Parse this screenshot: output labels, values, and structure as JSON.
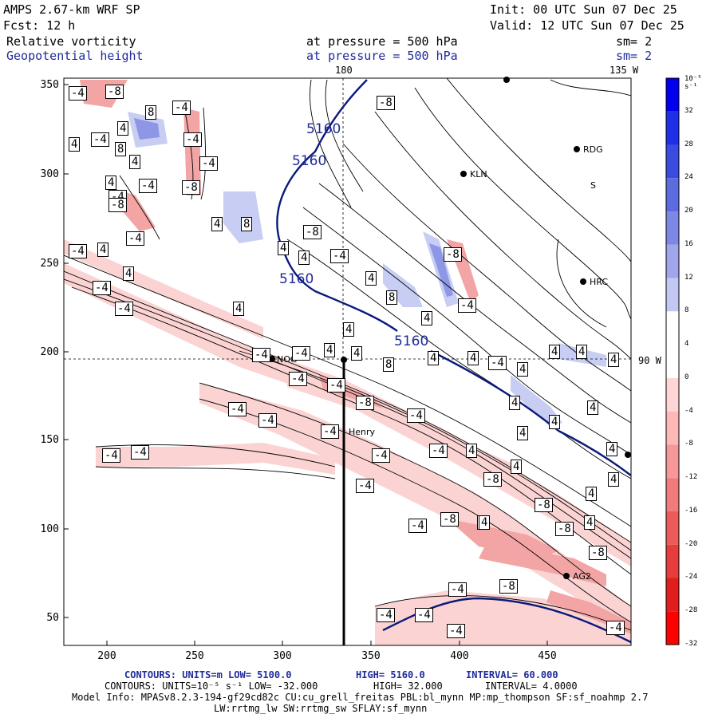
{
  "header": {
    "model": "AMPS 2.67-km WRF SP",
    "init": "Init: 00 UTC Sun 07 Dec 25",
    "fcst": "Fcst:     12 h",
    "valid": "Valid: 12 UTC Sun 07 Dec 25",
    "field1": "Relative vorticity",
    "field1_level": "at pressure =  500 hPa",
    "field1_sm": "sm= 2",
    "field2": "Geopotential height",
    "field2_level": "at pressure =  500 hPa",
    "field2_sm": "sm= 2"
  },
  "map": {
    "lon_labels": [
      "180",
      "135 W",
      "90 W"
    ],
    "y_ticks": [
      "350",
      "300",
      "250",
      "200",
      "150",
      "100",
      "50"
    ],
    "x_ticks": [
      "200",
      "250",
      "300",
      "350",
      "400",
      "450"
    ],
    "height_labels": [
      "5160",
      "5160",
      "5160",
      "5160"
    ],
    "stations": [
      "NOG",
      "KLN",
      "RDG",
      "HRC",
      "Henry",
      "AG2",
      "S"
    ],
    "vort_labels": [
      "-4",
      "-8",
      "8",
      "-4",
      "4",
      "-4",
      "4",
      "-4",
      "8",
      "-4",
      "4",
      "-4",
      "-8",
      "4",
      "-4",
      "-8",
      "4",
      "8",
      "-4",
      "4",
      "-4",
      "-8",
      "4",
      "-4",
      "-8",
      "4",
      "-4",
      "4",
      "8",
      "4",
      "-4",
      "4",
      "4",
      "-4",
      "4",
      "-8",
      "-4",
      "4",
      "8",
      "4",
      "-4",
      "4",
      "4",
      "-4",
      "4",
      "-4",
      "-4",
      "4",
      "4",
      "4",
      "-4",
      "4",
      "4",
      "4",
      "4",
      "-4",
      "4",
      "-8",
      "-4",
      "-4",
      "-4",
      "4",
      "-4",
      "4",
      "-8",
      "4",
      "-4",
      "-4",
      "-8",
      "4",
      "-4",
      "-4",
      "4",
      "-8",
      "4",
      "-8",
      "-8",
      "-8",
      "4",
      "-4",
      "-4",
      "-4",
      "-4",
      "-4"
    ]
  },
  "colorbar": {
    "unit": "10⁻⁵ s⁻¹",
    "labels": [
      "32",
      "28",
      "24",
      "20",
      "16",
      "12",
      "8",
      "4",
      "0",
      "-4",
      "-8",
      "-12",
      "-16",
      "-20",
      "-24",
      "-28",
      "-32"
    ],
    "colors": [
      "#0000ee",
      "#1f2ee8",
      "#3a4ce0",
      "#5c6be0",
      "#7d88e4",
      "#9fa6ea",
      "#c3c8f2",
      "#ffffff",
      "#ffffff",
      "#ffd6d6",
      "#ffb8b8",
      "#f79898",
      "#f27a7a",
      "#ec5a5a",
      "#e63c3c",
      "#e01e1e",
      "#ff0000"
    ]
  },
  "footer": {
    "line1_a": "CONTOURS:  UNITS=m  LOW=  5100.0",
    "line1_b": "HIGH=  5160.0",
    "line1_c": "INTERVAL=   60.000",
    "line2_a": "CONTOURS:  UNITS=10⁻⁵ s⁻¹  LOW=  -32.000",
    "line2_b": "HIGH=   32.000",
    "line2_c": "INTERVAL=    4.0000",
    "model_info": "Model Info: MPASv8.2.3-194-gf29cd82c CU:cu_grell_freitas PBL:bl_mynn MP:mp_thompson SF:sf_noahmp 2.7",
    "model_info2": "LW:rrtmg_lw SW:rrtmg_sw SFLAY:sf_mynn"
  }
}
